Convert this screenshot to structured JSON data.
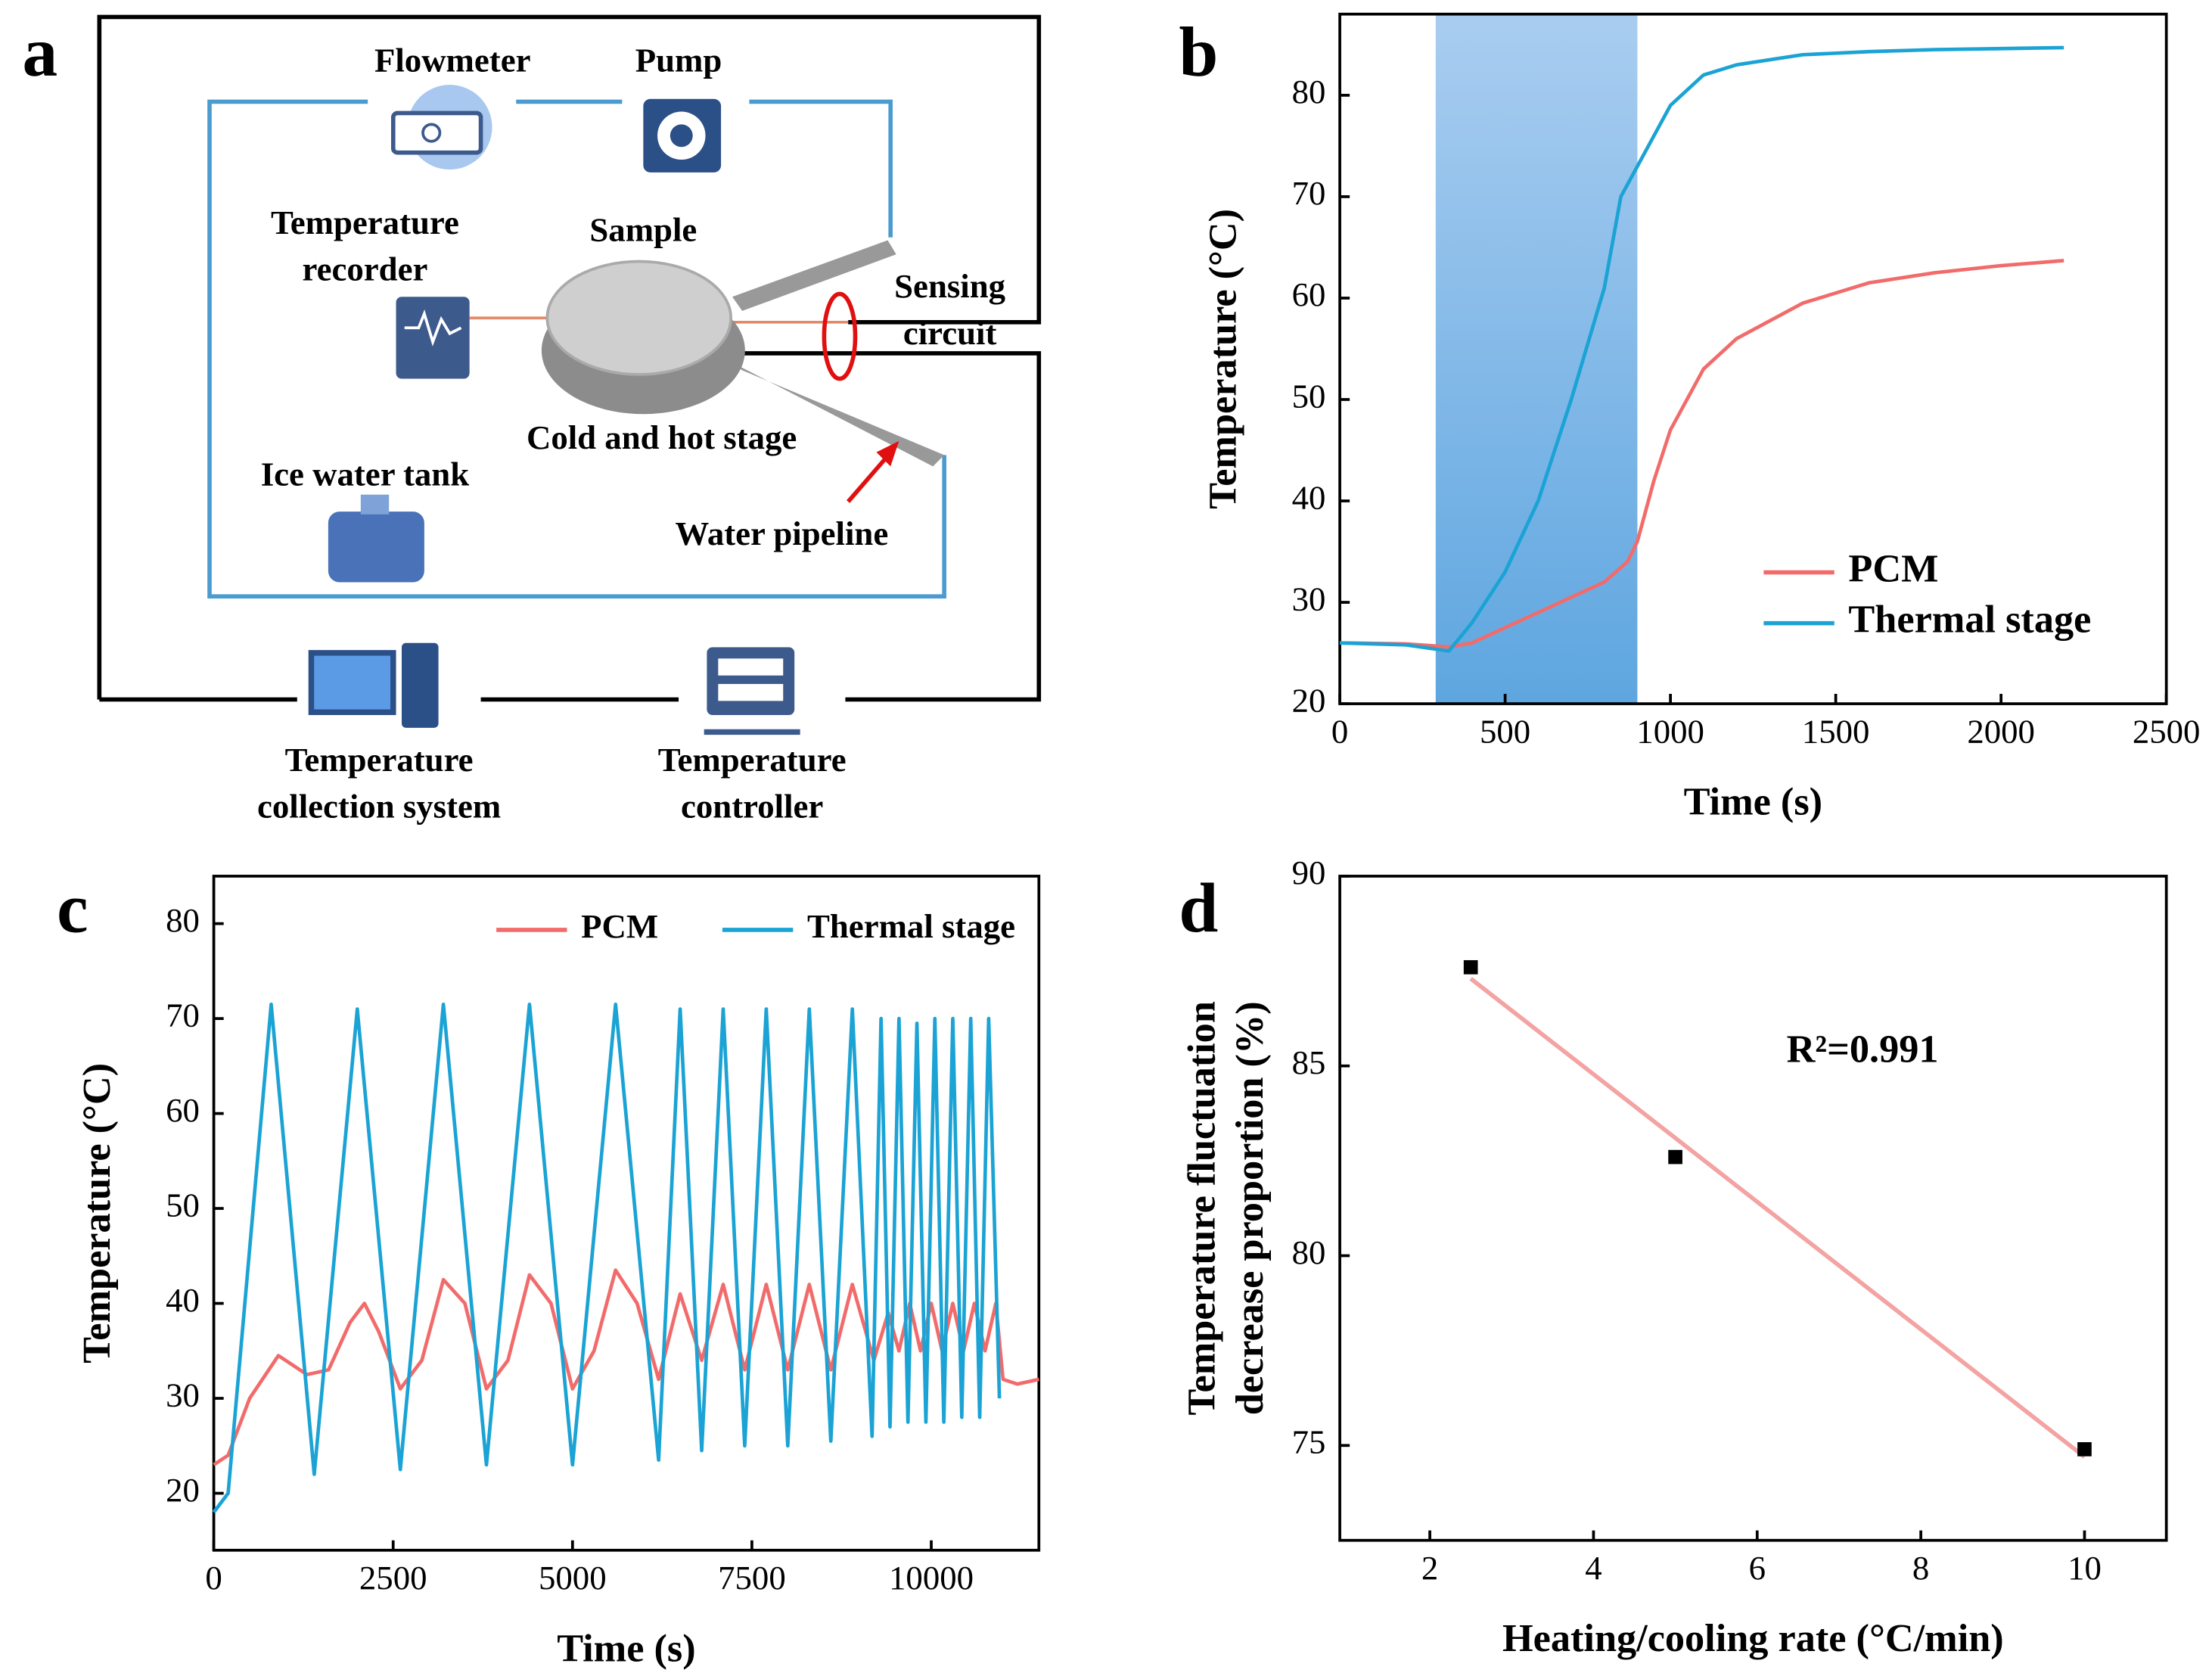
{
  "diagram": {
    "panel_label": "a",
    "labels": [
      [
        "Flowmeter"
      ],
      [
        "Pump"
      ],
      [
        "Temperature",
        "recorder"
      ],
      [
        "Sample"
      ],
      [
        "Sensing",
        "circuit"
      ],
      [
        "Cold and hot stage"
      ],
      [
        "Ice water tank"
      ],
      [
        "Water pipeline"
      ],
      [
        "Temperature",
        "collection system"
      ],
      [
        "Temperature",
        "controller"
      ]
    ]
  },
  "chart_data": [
    {
      "panel_label": "b",
      "type": "line",
      "xlabel": "Time (s)",
      "ylabel": "Temperature (°C)",
      "xlim": [
        0,
        2500
      ],
      "xticks": [
        0,
        500,
        1000,
        1500,
        2000,
        2500
      ],
      "ylim": [
        20,
        88
      ],
      "yticks": [
        20,
        30,
        40,
        50,
        60,
        70,
        80
      ],
      "shaded_span": [
        290,
        900
      ],
      "legend": "lower right",
      "series": [
        {
          "name": "PCM",
          "color": "#f26b6b",
          "x": [
            0,
            200,
            330,
            400,
            500,
            600,
            700,
            800,
            870,
            900,
            950,
            1000,
            1100,
            1200,
            1400,
            1600,
            1800,
            2000,
            2190
          ],
          "values": [
            26,
            25.9,
            25.6,
            26,
            27.5,
            29,
            30.5,
            32,
            34,
            36,
            42,
            47,
            53,
            56,
            59.5,
            61.5,
            62.5,
            63.2,
            63.7
          ]
        },
        {
          "name": "Thermal stage",
          "color": "#1aa3d4",
          "x": [
            0,
            200,
            330,
            400,
            500,
            600,
            700,
            800,
            850,
            900,
            1000,
            1100,
            1200,
            1400,
            1600,
            1800,
            2000,
            2190
          ],
          "values": [
            26,
            25.8,
            25.2,
            28,
            33,
            40,
            50,
            61,
            70,
            73,
            79,
            82,
            83,
            84,
            84.3,
            84.5,
            84.6,
            84.7
          ]
        }
      ]
    },
    {
      "panel_label": "c",
      "type": "line",
      "xlabel": "Time (s)",
      "ylabel": "Temperature (°C)",
      "xlim": [
        0,
        11500
      ],
      "xticks": [
        0,
        2500,
        5000,
        7500,
        10000
      ],
      "ylim": [
        14,
        85
      ],
      "yticks": [
        20,
        30,
        40,
        50,
        60,
        70,
        80
      ],
      "legend": "upper center",
      "series": [
        {
          "name": "PCM",
          "color": "#f26b6b",
          "x": [
            0,
            200,
            500,
            900,
            1300,
            1600,
            1900,
            2100,
            2300,
            2600,
            2900,
            3200,
            3500,
            3800,
            4100,
            4400,
            4700,
            5000,
            5300,
            5600,
            5900,
            6200,
            6500,
            6800,
            7100,
            7400,
            7700,
            8000,
            8300,
            8600,
            8900,
            9200,
            9400,
            9550,
            9700,
            9850,
            10000,
            10150,
            10300,
            10450,
            10600,
            10750,
            10900,
            11000,
            11200,
            11500
          ],
          "values": [
            23,
            24,
            30,
            34.5,
            32.5,
            33,
            38,
            40,
            37,
            31,
            34,
            42.5,
            40,
            31,
            34,
            43,
            40,
            31,
            35,
            43.5,
            40,
            32,
            41,
            34,
            42,
            33,
            42,
            33,
            42,
            33,
            42,
            34,
            39,
            35,
            40,
            35,
            40,
            35,
            40,
            35,
            40,
            35,
            40,
            32,
            31.5,
            32
          ]
        },
        {
          "name": "Thermal stage",
          "color": "#1aa3d4",
          "x": [
            0,
            200,
            800,
            1400,
            2000,
            2600,
            3200,
            3800,
            4400,
            5000,
            5600,
            6200,
            6500,
            6800,
            7100,
            7400,
            7700,
            8000,
            8300,
            8600,
            8900,
            9175,
            9300,
            9425,
            9550,
            9675,
            9800,
            9925,
            10050,
            10175,
            10300,
            10425,
            10550,
            10675,
            10800,
            10950
          ],
          "values": [
            18,
            20,
            71.5,
            22,
            71,
            22.5,
            71.5,
            23,
            71.5,
            23,
            71.5,
            23.5,
            71,
            24.5,
            71,
            25,
            71,
            25,
            71,
            25.5,
            71,
            26,
            70,
            27,
            70,
            27.5,
            69.5,
            27.5,
            70,
            27.5,
            70,
            28,
            70,
            28,
            70,
            30
          ]
        }
      ]
    },
    {
      "panel_label": "d",
      "type": "scatter",
      "xlabel": "Heating/cooling rate (°C/min)",
      "ylabel": [
        "Temperature fluctuation",
        "decrease proportion (%)"
      ],
      "xlim": [
        0.9,
        11
      ],
      "xticks": [
        2,
        4,
        6,
        8,
        10
      ],
      "ylim": [
        72.5,
        90
      ],
      "yticks": [
        75,
        80,
        85,
        90
      ],
      "x": [
        2.5,
        5,
        10
      ],
      "values": [
        87.6,
        82.6,
        74.9
      ],
      "color": "#000000",
      "fit_line": {
        "x": [
          2.5,
          10
        ],
        "values": [
          87.3,
          74.7
        ],
        "color": "#f4a3a3"
      },
      "annotation": "R²=0.991"
    }
  ]
}
